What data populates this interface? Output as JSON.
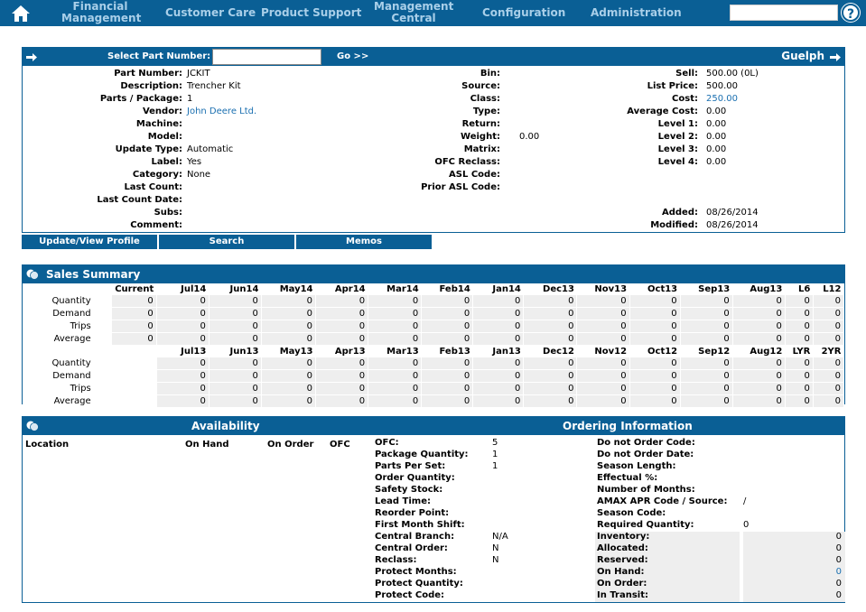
{
  "nav": {
    "items": [
      {
        "label1": "Financial",
        "label2": "Management"
      },
      {
        "label1": "Customer Care",
        "label2": ""
      },
      {
        "label1": "Product Support",
        "label2": ""
      },
      {
        "label1": "Management",
        "label2": "Central"
      },
      {
        "label1": "Configuration",
        "label2": ""
      },
      {
        "label1": "Administration",
        "label2": ""
      }
    ],
    "search_value": "",
    "help_glyph": "?"
  },
  "part": {
    "select_label": "Select Part Number:",
    "select_value": "",
    "go_label": "Go >>",
    "branch": "Guelph",
    "left": [
      {
        "label": "Part Number:",
        "value": "JCKIT"
      },
      {
        "label": "Description:",
        "value": "Trencher Kit"
      },
      {
        "label": "Parts / Package:",
        "value": "1"
      },
      {
        "label": "Vendor:",
        "value": "John Deere Ltd."
      },
      {
        "label": "Machine:",
        "value": ""
      },
      {
        "label": "Model:",
        "value": ""
      },
      {
        "label": "Update Type:",
        "value": "Automatic"
      },
      {
        "label": "Label:",
        "value": "Yes"
      },
      {
        "label": "Category:",
        "value": "None"
      },
      {
        "label": "Last Count:",
        "value": ""
      },
      {
        "label": "Last Count Date:",
        "value": ""
      },
      {
        "label": "Subs:",
        "value": ""
      },
      {
        "label": "Comment:",
        "value": ""
      }
    ],
    "middle": [
      {
        "label": "Bin:",
        "value": ""
      },
      {
        "label": "Source:",
        "value": ""
      },
      {
        "label": "Class:",
        "value": ""
      },
      {
        "label": "Type:",
        "value": ""
      },
      {
        "label": "Return:",
        "value": ""
      },
      {
        "label": "Weight:",
        "value": "0.00"
      },
      {
        "label": "Matrix:",
        "value": ""
      },
      {
        "label": "OFC Reclass:",
        "value": ""
      },
      {
        "label": "ASL Code:",
        "value": ""
      },
      {
        "label": "Prior ASL Code:",
        "value": ""
      }
    ],
    "right": [
      {
        "label": "Sell:",
        "value": "500.00  (0L)"
      },
      {
        "label": "List Price:",
        "value": "500.00"
      },
      {
        "label": "Cost:",
        "value": "250.00"
      },
      {
        "label": "Average Cost:",
        "value": "0.00"
      },
      {
        "label": "Level 1:",
        "value": "0.00"
      },
      {
        "label": "Level 2:",
        "value": "0.00"
      },
      {
        "label": "Level 3:",
        "value": "0.00"
      },
      {
        "label": "Level 4:",
        "value": "0.00"
      }
    ],
    "dates": [
      {
        "label": "Added:",
        "value": "08/26/2014"
      },
      {
        "label": "Modified:",
        "value": "08/26/2014"
      }
    ],
    "buttons": [
      "Update/View Profile",
      "Search",
      "Memos"
    ]
  },
  "sales": {
    "title": "Sales Summary",
    "header1": [
      "Current",
      "Jul14",
      "Jun14",
      "May14",
      "Apr14",
      "Mar14",
      "Feb14",
      "Jan14",
      "Dec13",
      "Nov13",
      "Oct13",
      "Sep13",
      "Aug13",
      "L6",
      "L12"
    ],
    "header2": [
      "",
      "Jul13",
      "Jun13",
      "May13",
      "Apr13",
      "Mar13",
      "Feb13",
      "Jan13",
      "Dec12",
      "Nov12",
      "Oct12",
      "Sep12",
      "Aug12",
      "LYR",
      "2YR"
    ],
    "rows1": [
      {
        "label": "Quantity",
        "values": [
          "0",
          "0",
          "0",
          "0",
          "0",
          "0",
          "0",
          "0",
          "0",
          "0",
          "0",
          "0",
          "0",
          "0",
          "0"
        ]
      },
      {
        "label": "Demand",
        "values": [
          "0",
          "0",
          "0",
          "0",
          "0",
          "0",
          "0",
          "0",
          "0",
          "0",
          "0",
          "0",
          "0",
          "0",
          "0"
        ]
      },
      {
        "label": "Trips",
        "values": [
          "0",
          "0",
          "0",
          "0",
          "0",
          "0",
          "0",
          "0",
          "0",
          "0",
          "0",
          "0",
          "0",
          "0",
          "0"
        ]
      },
      {
        "label": "Average",
        "values": [
          "0",
          "0",
          "0",
          "0",
          "0",
          "0",
          "0",
          "0",
          "0",
          "0",
          "0",
          "0",
          "0",
          "0",
          "0"
        ]
      }
    ],
    "rows2": [
      {
        "label": "Quantity",
        "values": [
          "",
          "0",
          "0",
          "0",
          "0",
          "0",
          "0",
          "0",
          "0",
          "0",
          "0",
          "0",
          "0",
          "0",
          "0"
        ]
      },
      {
        "label": "Demand",
        "values": [
          "",
          "0",
          "0",
          "0",
          "0",
          "0",
          "0",
          "0",
          "0",
          "0",
          "0",
          "0",
          "0",
          "0",
          "0"
        ]
      },
      {
        "label": "Trips",
        "values": [
          "",
          "0",
          "0",
          "0",
          "0",
          "0",
          "0",
          "0",
          "0",
          "0",
          "0",
          "0",
          "0",
          "0",
          "0"
        ]
      },
      {
        "label": "Average",
        "values": [
          "",
          "0",
          "0",
          "0",
          "0",
          "0",
          "0",
          "0",
          "0",
          "0",
          "0",
          "0",
          "0",
          "0",
          "0"
        ]
      }
    ]
  },
  "avail": {
    "title": "Availability",
    "order_title": "Ordering Information",
    "cols": [
      "Location",
      "On Hand",
      "On Order",
      "OFC"
    ],
    "ofc_rows": [
      {
        "label": "OFC:",
        "value": "5"
      },
      {
        "label": "Package Quantity:",
        "value": "1"
      },
      {
        "label": "Parts Per Set:",
        "value": "1"
      },
      {
        "label": "Order Quantity:",
        "value": ""
      },
      {
        "label": "Safety Stock:",
        "value": ""
      },
      {
        "label": "Lead Time:",
        "value": ""
      },
      {
        "label": "Reorder Point:",
        "value": ""
      },
      {
        "label": "First Month Shift:",
        "value": ""
      },
      {
        "label": "Central Branch:",
        "value": "N/A"
      },
      {
        "label": "Central Order:",
        "value": "N"
      },
      {
        "label": "Reclass:",
        "value": "N"
      },
      {
        "label": "Protect Months:",
        "value": ""
      },
      {
        "label": "Protect Quantity:",
        "value": ""
      },
      {
        "label": "Protect Code:",
        "value": ""
      }
    ],
    "order_rows": [
      {
        "label": "Do not Order Code:",
        "value": ""
      },
      {
        "label": "Do not Order Date:",
        "value": ""
      },
      {
        "label": "Season Length:",
        "value": ""
      },
      {
        "label": "Effectual %:",
        "value": ""
      },
      {
        "label": "Number of Months:",
        "value": ""
      },
      {
        "label": "AMAX APR Code / Source:",
        "value": "/"
      },
      {
        "label": "Season Code:",
        "value": ""
      },
      {
        "label": "Required Quantity:",
        "value": "0"
      }
    ],
    "stock_rows": [
      {
        "label": "Inventory:",
        "value": "0"
      },
      {
        "label": "Allocated:",
        "value": "0"
      },
      {
        "label": "Reserved:",
        "value": "0"
      },
      {
        "label": "On Hand:",
        "value": "0"
      },
      {
        "label": "On Order:",
        "value": "0"
      },
      {
        "label": "In Transit:",
        "value": "0"
      }
    ]
  }
}
